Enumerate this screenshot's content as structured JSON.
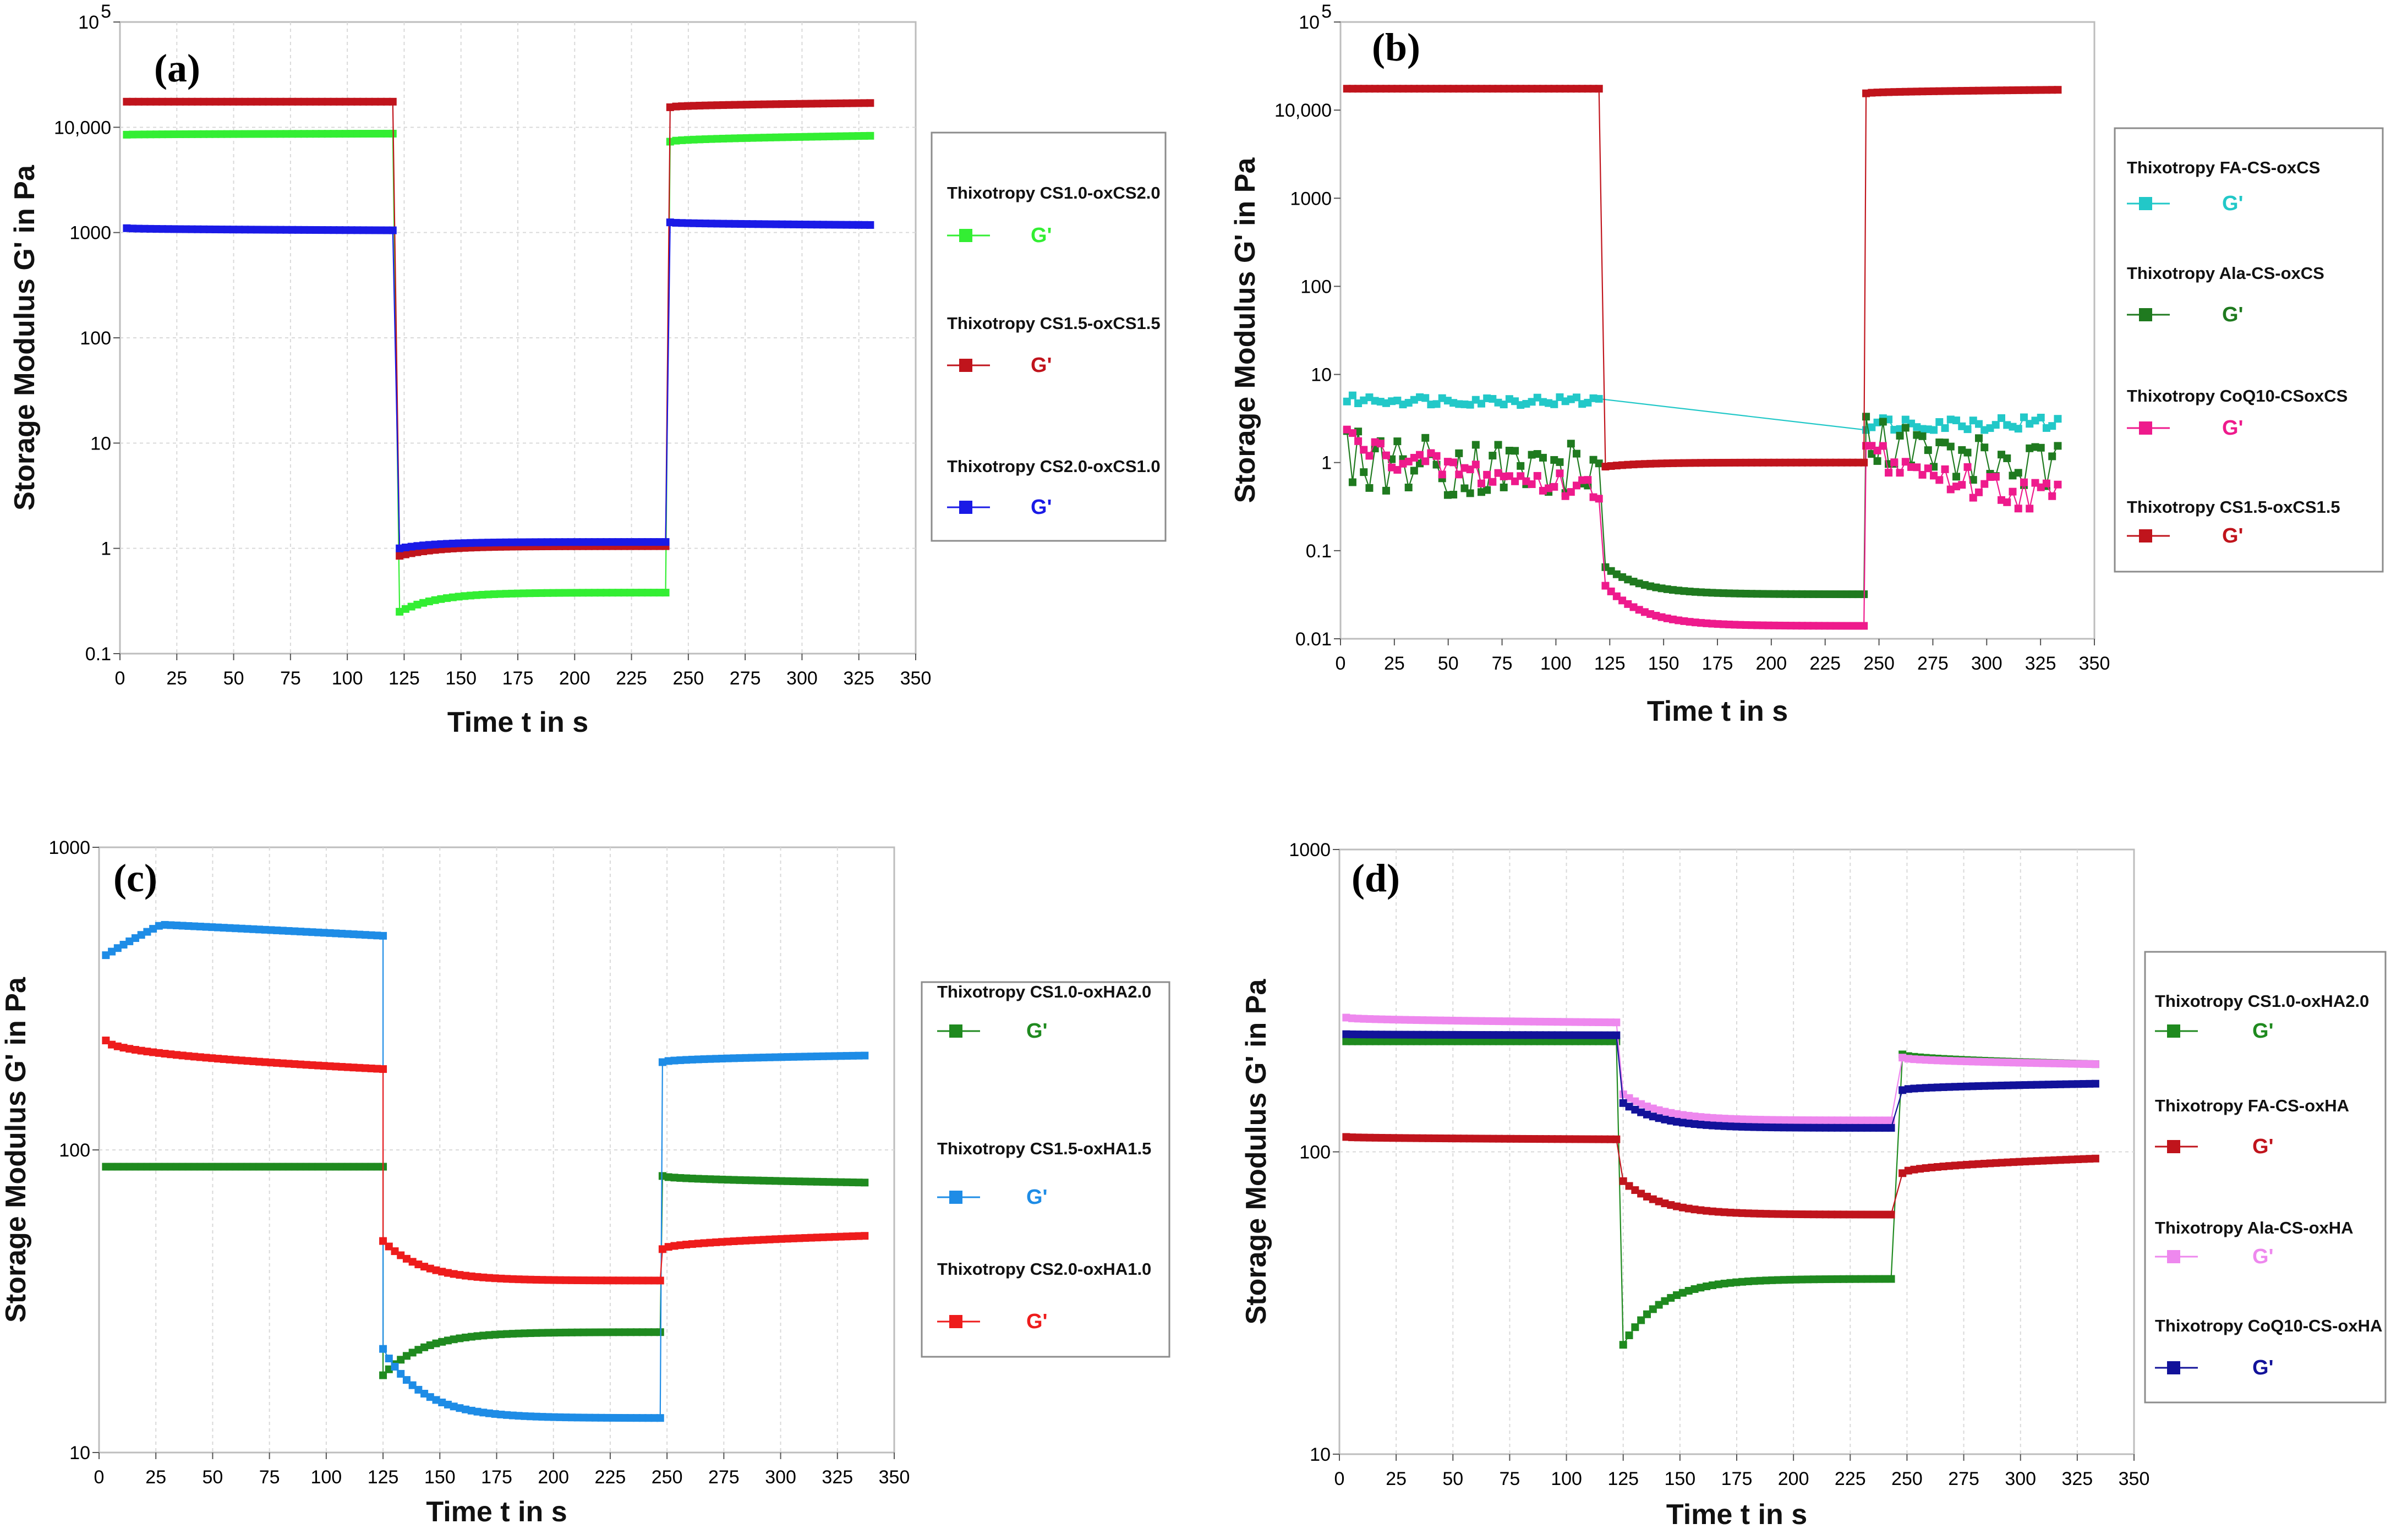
{
  "chart_data": [
    {
      "type": "line",
      "panel_label": "(a)",
      "xlabel": "Time t in s",
      "ylabel": "Storage Modulus G' in Pa",
      "yscale": "log",
      "xlim": [
        0,
        350
      ],
      "ylim": [
        0.1,
        100000
      ],
      "x_ticks": [
        "0",
        "25",
        "50",
        "75",
        "100",
        "125",
        "150",
        "175",
        "200",
        "225",
        "250",
        "275",
        "300",
        "325",
        "350"
      ],
      "y_ticks": [
        {
          "value": 0.1,
          "label": "0.1"
        },
        {
          "value": 1,
          "label": "1"
        },
        {
          "value": 10,
          "label": "10"
        },
        {
          "value": 100,
          "label": "100"
        },
        {
          "value": 1000,
          "label": "1000"
        },
        {
          "value": 10000,
          "label": "10,000"
        },
        {
          "value": 100000,
          "label": "10",
          "sup": "5"
        }
      ],
      "grid": true,
      "series": [
        {
          "name": "Thixotropy CS1.0-oxCS2.0",
          "marker_label": "G'",
          "color": "#33ee33",
          "segments": [
            {
              "x0": 3,
              "x1": 120,
              "v0": 8500,
              "v1": 8700
            },
            {
              "x0": 123,
              "x1": 240,
              "v0": 0.25,
              "v1": 0.38,
              "settle": 0.38,
              "first": 0.25
            },
            {
              "x0": 242,
              "x1": 330,
              "v0": 7300,
              "v1": 8300
            }
          ]
        },
        {
          "name": "Thixotropy CS1.5-oxCS1.5",
          "marker_label": "G'",
          "color": "#c0141c",
          "segments": [
            {
              "x0": 3,
              "x1": 120,
              "v0": 17500,
              "v1": 17500
            },
            {
              "x0": 123,
              "x1": 240,
              "v0": 0.85,
              "v1": 1.05,
              "settle": 1.05,
              "first": 0.85
            },
            {
              "x0": 242,
              "x1": 330,
              "v0": 15500,
              "v1": 17000
            }
          ]
        },
        {
          "name": "Thixotropy CS2.0-oxCS1.0",
          "marker_label": "G'",
          "color": "#1a1ae6",
          "segments": [
            {
              "x0": 3,
              "x1": 120,
              "v0": 1100,
              "v1": 1050
            },
            {
              "x0": 123,
              "x1": 240,
              "v0": 1.15,
              "v1": 1.15,
              "settle": 1.15,
              "first": 1.0
            },
            {
              "x0": 242,
              "x1": 330,
              "v0": 1250,
              "v1": 1180
            }
          ]
        }
      ]
    },
    {
      "type": "line",
      "panel_label": "(b)",
      "xlabel": "Time t in s",
      "ylabel": "Storage Modulus G' in Pa",
      "yscale": "log",
      "xlim": [
        0,
        350
      ],
      "ylim": [
        0.01,
        100000
      ],
      "x_ticks": [
        "0",
        "25",
        "50",
        "75",
        "100",
        "125",
        "150",
        "175",
        "200",
        "225",
        "250",
        "275",
        "300",
        "325",
        "350"
      ],
      "y_ticks": [
        {
          "value": 0.01,
          "label": "0.01"
        },
        {
          "value": 0.1,
          "label": "0.1"
        },
        {
          "value": 1,
          "label": "1"
        },
        {
          "value": 10,
          "label": "10"
        },
        {
          "value": 100,
          "label": "100"
        },
        {
          "value": 1000,
          "label": "1000"
        },
        {
          "value": 10000,
          "label": "10,000"
        },
        {
          "value": 100000,
          "label": "10",
          "sup": "5"
        }
      ],
      "grid": false,
      "series": [
        {
          "name": "Thixotropy FA-CS-oxCS",
          "marker_label": "G'",
          "color": "#22c8c8",
          "segments": [
            {
              "x0": 3,
              "x1": 120,
              "v0": 5.2,
              "v1": 5.0,
              "noise": 0.05
            },
            {
              "x0": 244,
              "x1": 333,
              "v0": 2.8,
              "v1": 2.8,
              "noise": 0.08
            }
          ]
        },
        {
          "name": "Thixotropy Ala-CS-oxCS",
          "marker_label": "G'",
          "color": "#1f7a1f",
          "segments": [
            {
              "x0": 3,
              "x1": 120,
              "v0": 1.2,
              "v1": 0.8,
              "noise": 0.35
            },
            {
              "x0": 123,
              "x1": 243,
              "v0": 0.06,
              "v1": 0.032,
              "settle": 0.032,
              "first": 0.065
            },
            {
              "x0": 244,
              "x1": 333,
              "v0": 2.5,
              "v1": 0.8,
              "noise": 0.3
            }
          ]
        },
        {
          "name": "Thixotropy CoQ10-CSoxCS",
          "marker_label": "G'",
          "color": "#ee1a8c",
          "segments": [
            {
              "x0": 3,
              "x1": 120,
              "v0": 2.2,
              "v1": 0.5,
              "noise": 0.15
            },
            {
              "x0": 123,
              "x1": 243,
              "v0": 0.035,
              "v1": 0.014,
              "settle": 0.014,
              "first": 0.04
            },
            {
              "x0": 244,
              "x1": 333,
              "v0": 1.8,
              "v1": 0.4,
              "noise": 0.2
            }
          ]
        },
        {
          "name": "Thixotropy CS1.5-oxCS1.5",
          "marker_label": "G'",
          "color": "#c0141c",
          "segments": [
            {
              "x0": 3,
              "x1": 120,
              "v0": 17500,
              "v1": 17500
            },
            {
              "x0": 123,
              "x1": 243,
              "v0": 1.0,
              "v1": 1.0,
              "settle": 1.0,
              "first": 0.9
            },
            {
              "x0": 244,
              "x1": 333,
              "v0": 15500,
              "v1": 17000
            }
          ]
        }
      ]
    },
    {
      "type": "line",
      "panel_label": "(c)",
      "xlabel": "Time t in s",
      "ylabel": "Storage Modulus G' in Pa",
      "yscale": "log",
      "xlim": [
        0,
        350
      ],
      "ylim": [
        10,
        1000
      ],
      "x_ticks": [
        "0",
        "25",
        "50",
        "75",
        "100",
        "125",
        "150",
        "175",
        "200",
        "225",
        "250",
        "275",
        "300",
        "325",
        "350"
      ],
      "y_ticks": [
        {
          "value": 10,
          "label": "10"
        },
        {
          "value": 100,
          "label": "100"
        },
        {
          "value": 1000,
          "label": "1000"
        }
      ],
      "grid": true,
      "series": [
        {
          "name": "Thixotropy CS1.0-oxHA2.0",
          "marker_label": "G'",
          "color": "#1f8a1f",
          "segments": [
            {
              "x0": 3,
              "x1": 125,
              "v0": 88,
              "v1": 88
            },
            {
              "x0": 125,
              "x1": 247,
              "v0": 18,
              "v1": 25,
              "settle": 25,
              "first": 18
            },
            {
              "x0": 248,
              "x1": 337,
              "v0": 82,
              "v1": 78
            }
          ]
        },
        {
          "name": "Thixotropy CS1.5-oxHA1.5",
          "marker_label": "G'",
          "color": "#1e8ce6",
          "segments": [
            {
              "x0": 3,
              "x1": 125,
              "v0": 440,
              "v1": 510,
              "hump": 555
            },
            {
              "x0": 125,
              "x1": 247,
              "v0": 22,
              "v1": 13,
              "settle": 13,
              "first": 22
            },
            {
              "x0": 248,
              "x1": 337,
              "v0": 195,
              "v1": 205
            }
          ]
        },
        {
          "name": "Thixotropy CS2.0-oxHA1.0",
          "marker_label": "G'",
          "color": "#ee1c1c",
          "segments": [
            {
              "x0": 3,
              "x1": 125,
              "v0": 230,
              "v1": 185
            },
            {
              "x0": 125,
              "x1": 247,
              "v0": 50,
              "v1": 37,
              "settle": 37,
              "first": 50
            },
            {
              "x0": 248,
              "x1": 337,
              "v0": 47,
              "v1": 52
            }
          ]
        }
      ]
    },
    {
      "type": "line",
      "panel_label": "(d)",
      "xlabel": "Time t in s",
      "ylabel": "Storage Modulus G' in Pa",
      "yscale": "log",
      "xlim": [
        0,
        350
      ],
      "ylim": [
        10,
        1000
      ],
      "x_ticks": [
        "0",
        "25",
        "50",
        "75",
        "100",
        "125",
        "150",
        "175",
        "200",
        "225",
        "250",
        "275",
        "300",
        "325",
        "350"
      ],
      "y_ticks": [
        {
          "value": 10,
          "label": "10"
        },
        {
          "value": 100,
          "label": "100"
        },
        {
          "value": 1000,
          "label": "1000"
        }
      ],
      "grid": true,
      "series": [
        {
          "name": "Thixotropy CS1.0-oxHA2.0",
          "marker_label": "G'",
          "color": "#1f8a1f",
          "segments": [
            {
              "x0": 3,
              "x1": 122,
              "v0": 232,
              "v1": 232
            },
            {
              "x0": 125,
              "x1": 243,
              "v0": 23,
              "v1": 38,
              "settle": 38,
              "first": 23
            },
            {
              "x0": 248,
              "x1": 333,
              "v0": 210,
              "v1": 195
            }
          ]
        },
        {
          "name": "Thixotropy FA-CS-oxHA",
          "marker_label": "G'",
          "color": "#c0141c",
          "segments": [
            {
              "x0": 3,
              "x1": 122,
              "v0": 112,
              "v1": 110
            },
            {
              "x0": 125,
              "x1": 243,
              "v0": 80,
              "v1": 62,
              "settle": 62,
              "first": 80
            },
            {
              "x0": 248,
              "x1": 333,
              "v0": 85,
              "v1": 95
            }
          ]
        },
        {
          "name": "Thixotropy Ala-CS-oxHA",
          "marker_label": "G'",
          "color": "#ee88ee",
          "segments": [
            {
              "x0": 3,
              "x1": 122,
              "v0": 278,
              "v1": 268
            },
            {
              "x0": 125,
              "x1": 243,
              "v0": 155,
              "v1": 127,
              "settle": 127,
              "first": 155
            },
            {
              "x0": 248,
              "x1": 333,
              "v0": 205,
              "v1": 195
            }
          ]
        },
        {
          "name": "Thixotropy CoQ10-CS-oxHA",
          "marker_label": "G'",
          "color": "#12129a",
          "segments": [
            {
              "x0": 3,
              "x1": 122,
              "v0": 245,
              "v1": 243
            },
            {
              "x0": 125,
              "x1": 243,
              "v0": 145,
              "v1": 120,
              "settle": 120,
              "first": 145
            },
            {
              "x0": 248,
              "x1": 333,
              "v0": 160,
              "v1": 168
            }
          ]
        }
      ]
    }
  ]
}
